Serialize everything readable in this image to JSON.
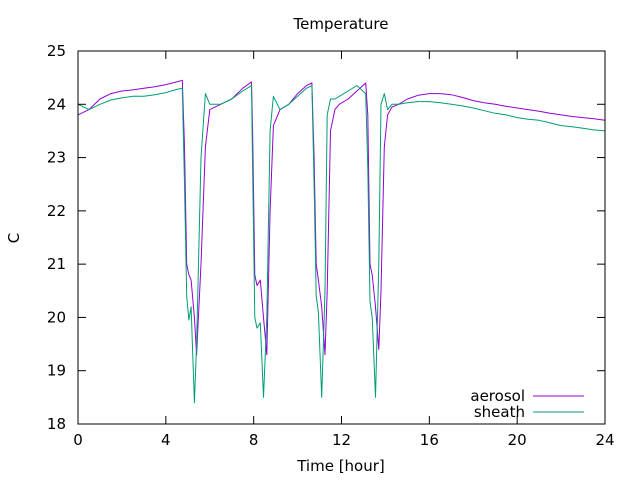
{
  "chart_data": {
    "type": "line",
    "title": "Temperature",
    "xlabel": "Time [hour]",
    "ylabel": "C",
    "xlim": [
      0,
      24
    ],
    "ylim": [
      18,
      25
    ],
    "xticks": [
      0,
      4,
      8,
      12,
      16,
      20,
      24
    ],
    "yticks": [
      18,
      19,
      20,
      21,
      22,
      23,
      24,
      25
    ],
    "grid": false,
    "legend_position": "bottom-right",
    "series": [
      {
        "name": "aerosol",
        "color": "#9400d3",
        "x": [
          0,
          0.5,
          1,
          1.5,
          2,
          2.5,
          3,
          3.5,
          4,
          4.5,
          4.75,
          4.85,
          4.95,
          5.05,
          5.15,
          5.3,
          5.4,
          5.6,
          5.8,
          6.0,
          6.5,
          7,
          7.5,
          7.9,
          7.95,
          8.05,
          8.15,
          8.3,
          8.45,
          8.6,
          8.75,
          8.9,
          9.2,
          9.6,
          10,
          10.4,
          10.65,
          10.75,
          10.85,
          10.95,
          11.1,
          11.25,
          11.35,
          11.5,
          11.7,
          11.9,
          12.3,
          12.7,
          13.1,
          13.2,
          13.3,
          13.4,
          13.55,
          13.7,
          13.8,
          13.95,
          14.1,
          14.3,
          14.6,
          15,
          15.5,
          16,
          16.5,
          17,
          17.5,
          18,
          18.5,
          19,
          19.5,
          20,
          20.5,
          21,
          21.5,
          22,
          22.5,
          23,
          23.5,
          24
        ],
        "y": [
          23.8,
          23.9,
          24.1,
          24.2,
          24.25,
          24.27,
          24.3,
          24.33,
          24.37,
          24.42,
          24.45,
          23.2,
          21.0,
          20.8,
          20.7,
          20.0,
          19.3,
          21.0,
          23.2,
          23.9,
          24.0,
          24.1,
          24.3,
          24.42,
          23.5,
          20.8,
          20.6,
          20.7,
          20.0,
          19.3,
          22.0,
          23.6,
          23.9,
          24.0,
          24.2,
          24.35,
          24.4,
          23.0,
          21.0,
          20.7,
          20.2,
          19.3,
          20.5,
          23.5,
          23.9,
          24.0,
          24.1,
          24.25,
          24.4,
          23.8,
          21.0,
          20.8,
          20.2,
          19.4,
          20.5,
          23.2,
          23.8,
          23.95,
          24.0,
          24.1,
          24.17,
          24.2,
          24.2,
          24.18,
          24.13,
          24.07,
          24.03,
          24.0,
          23.96,
          23.93,
          23.9,
          23.87,
          23.83,
          23.8,
          23.77,
          23.75,
          23.73,
          23.7
        ]
      },
      {
        "name": "sheath",
        "color": "#009e73",
        "x": [
          0,
          0.5,
          1,
          1.5,
          2,
          2.5,
          3,
          3.5,
          4,
          4.5,
          4.75,
          4.85,
          4.95,
          5.05,
          5.15,
          5.3,
          5.4,
          5.6,
          5.8,
          6.0,
          6.5,
          7,
          7.5,
          7.9,
          7.95,
          8.05,
          8.15,
          8.3,
          8.45,
          8.6,
          8.75,
          8.9,
          9.2,
          9.6,
          10,
          10.4,
          10.65,
          10.75,
          10.85,
          10.95,
          11.1,
          11.25,
          11.35,
          11.5,
          11.7,
          11.9,
          12.3,
          12.7,
          13.1,
          13.2,
          13.3,
          13.4,
          13.55,
          13.7,
          13.8,
          13.95,
          14.1,
          14.3,
          14.6,
          15,
          15.5,
          16,
          16.5,
          17,
          17.5,
          18,
          18.5,
          19,
          19.5,
          20,
          20.5,
          21,
          21.5,
          22,
          22.5,
          23,
          23.5,
          24
        ],
        "y": [
          24.0,
          23.9,
          24.0,
          24.08,
          24.12,
          24.15,
          24.15,
          24.18,
          24.22,
          24.28,
          24.3,
          22.5,
          20.4,
          19.95,
          20.2,
          18.4,
          19.5,
          23.0,
          24.2,
          24.0,
          24.0,
          24.1,
          24.25,
          24.35,
          22.8,
          20.0,
          19.8,
          19.9,
          18.5,
          20.0,
          23.5,
          24.15,
          23.9,
          24.0,
          24.15,
          24.3,
          24.35,
          22.5,
          20.4,
          20.1,
          18.5,
          20.5,
          23.8,
          24.1,
          24.1,
          24.15,
          24.25,
          24.35,
          24.2,
          22.8,
          20.3,
          20.0,
          18.5,
          21.0,
          24.0,
          24.2,
          23.9,
          24.0,
          24.0,
          24.03,
          24.05,
          24.05,
          24.03,
          24.0,
          23.97,
          23.93,
          23.88,
          23.83,
          23.8,
          23.75,
          23.72,
          23.7,
          23.65,
          23.6,
          23.58,
          23.55,
          23.52,
          23.5
        ]
      }
    ]
  }
}
